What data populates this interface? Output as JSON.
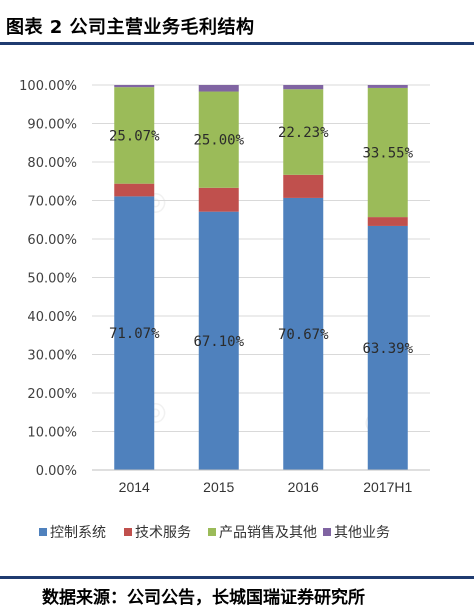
{
  "header": {
    "title": "图表 2  公司主营业务毛利结构"
  },
  "footer": {
    "source": "数据来源：公司公告，长城国瑞证券研究所"
  },
  "chart_data": {
    "type": "bar",
    "stacked": true,
    "categories": [
      "2014",
      "2015",
      "2016",
      "2017H1"
    ],
    "yticks": [
      "0.00%",
      "10.00%",
      "20.00%",
      "30.00%",
      "40.00%",
      "50.00%",
      "60.00%",
      "70.00%",
      "80.00%",
      "90.00%",
      "100.00%"
    ],
    "ylim": [
      0,
      100
    ],
    "grid": true,
    "legend_position": "bottom",
    "series": [
      {
        "name": "控制系统",
        "color": "#4f81bd",
        "values": [
          71.07,
          67.1,
          70.67,
          63.39
        ],
        "labels": [
          "71.07%",
          "67.10%",
          "70.67%",
          "63.39%"
        ]
      },
      {
        "name": "技术服务",
        "color": "#c0504d",
        "values": [
          3.3,
          6.2,
          6.0,
          2.3
        ]
      },
      {
        "name": "产品销售及其他",
        "color": "#9bbb59",
        "values": [
          25.07,
          25.0,
          22.23,
          33.55
        ],
        "labels": [
          "25.07%",
          "25.00%",
          "22.23%",
          "33.55%"
        ]
      },
      {
        "name": "其他业务",
        "color": "#8064a2",
        "values": [
          0.56,
          1.7,
          1.1,
          0.76
        ]
      }
    ]
  }
}
